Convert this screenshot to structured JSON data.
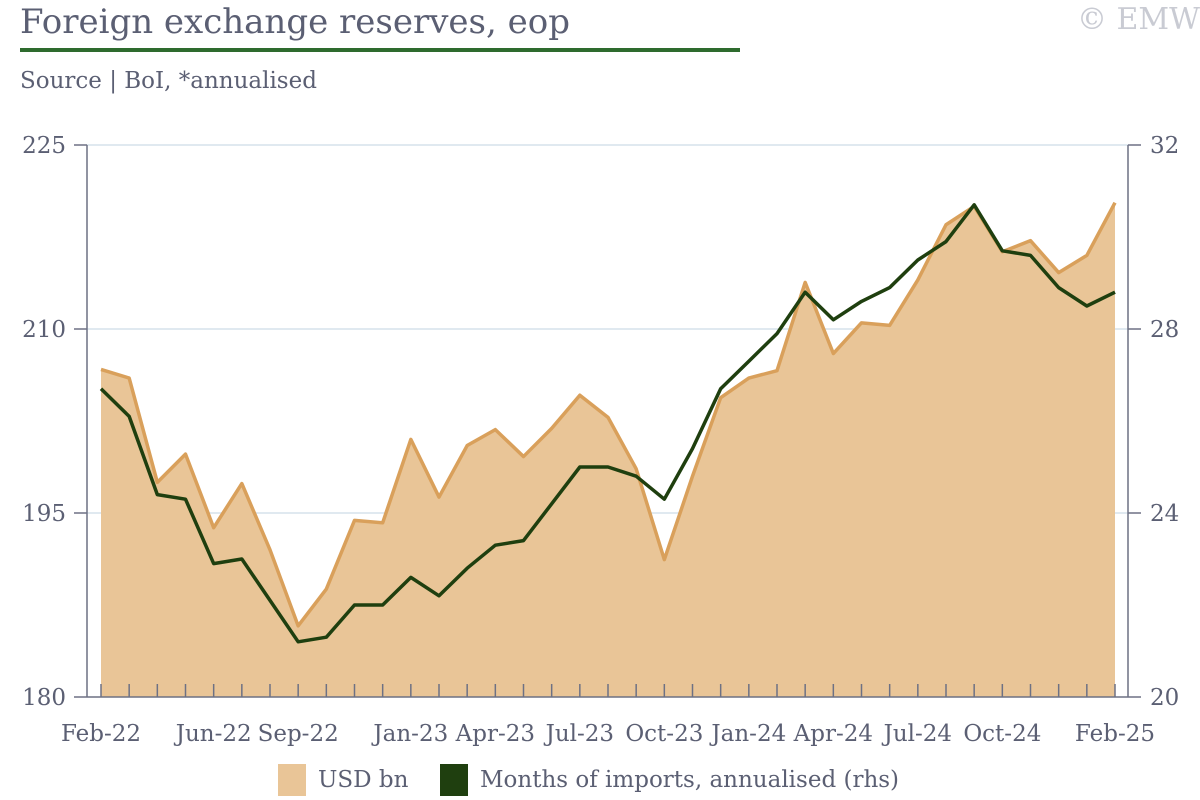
{
  "header": {
    "title": "Foreign exchange reserves, eop",
    "subtitle": "Source | BoI, *annualised",
    "watermark": "© EMW"
  },
  "colors": {
    "area_fill": "#e9c597",
    "area_line": "#d9a05b",
    "line": "#1f3f0f",
    "grid": "#d6e2ec",
    "axis": "#6d7184",
    "title_rule": "#2e6b2e"
  },
  "chart_data": {
    "type": "area",
    "x": [
      "Feb-22",
      "Mar-22",
      "Apr-22",
      "May-22",
      "Jun-22",
      "Jul-22",
      "Aug-22",
      "Sep-22",
      "Oct-22",
      "Nov-22",
      "Dec-22",
      "Jan-23",
      "Feb-23",
      "Mar-23",
      "Apr-23",
      "May-23",
      "Jun-23",
      "Jul-23",
      "Aug-23",
      "Sep-23",
      "Oct-23",
      "Nov-23",
      "Dec-23",
      "Jan-24",
      "Feb-24",
      "Mar-24",
      "Apr-24",
      "May-24",
      "Jun-24",
      "Jul-24",
      "Aug-24",
      "Sep-24",
      "Oct-24",
      "Nov-24",
      "Dec-24",
      "Jan-25",
      "Feb-25"
    ],
    "x_tick_labels": [
      "Feb-22",
      "Jun-22",
      "Sep-22",
      "Jan-23",
      "Apr-23",
      "Jul-23",
      "Oct-23",
      "Jan-24",
      "Apr-24",
      "Jul-24",
      "Oct-24",
      "Feb-25"
    ],
    "series": [
      {
        "name": "USD bn",
        "axis": "left",
        "type": "area",
        "values": [
          206.7,
          206.0,
          197.5,
          199.8,
          193.8,
          197.4,
          192.0,
          185.8,
          188.8,
          194.4,
          194.2,
          201.0,
          196.3,
          200.5,
          201.8,
          199.6,
          201.9,
          204.6,
          202.8,
          198.6,
          191.2,
          198.0,
          204.4,
          206.0,
          206.6,
          213.8,
          208.0,
          210.5,
          210.3,
          214.0,
          218.5,
          220.0,
          216.3,
          217.2,
          214.6,
          216.0,
          220.3
        ]
      },
      {
        "name": "Months of imports, annualised (rhs)",
        "axis": "right",
        "type": "line",
        "values": [
          26.7,
          26.1,
          24.4,
          24.3,
          22.9,
          23.0,
          22.1,
          21.2,
          21.3,
          22.0,
          22.0,
          22.6,
          22.2,
          22.8,
          23.3,
          23.4,
          24.2,
          25.0,
          25.0,
          24.8,
          24.3,
          25.4,
          26.7,
          27.3,
          27.9,
          28.8,
          28.2,
          28.6,
          28.9,
          29.5,
          29.9,
          30.7,
          29.7,
          29.6,
          28.9,
          28.5,
          28.8
        ]
      }
    ],
    "ylim_left": [
      180,
      225
    ],
    "yticks_left": [
      180,
      195,
      210,
      225
    ],
    "ylim_right": [
      20,
      32
    ],
    "yticks_right": [
      20,
      24,
      28,
      32
    ],
    "grid": true,
    "legend": "bottom-center"
  }
}
